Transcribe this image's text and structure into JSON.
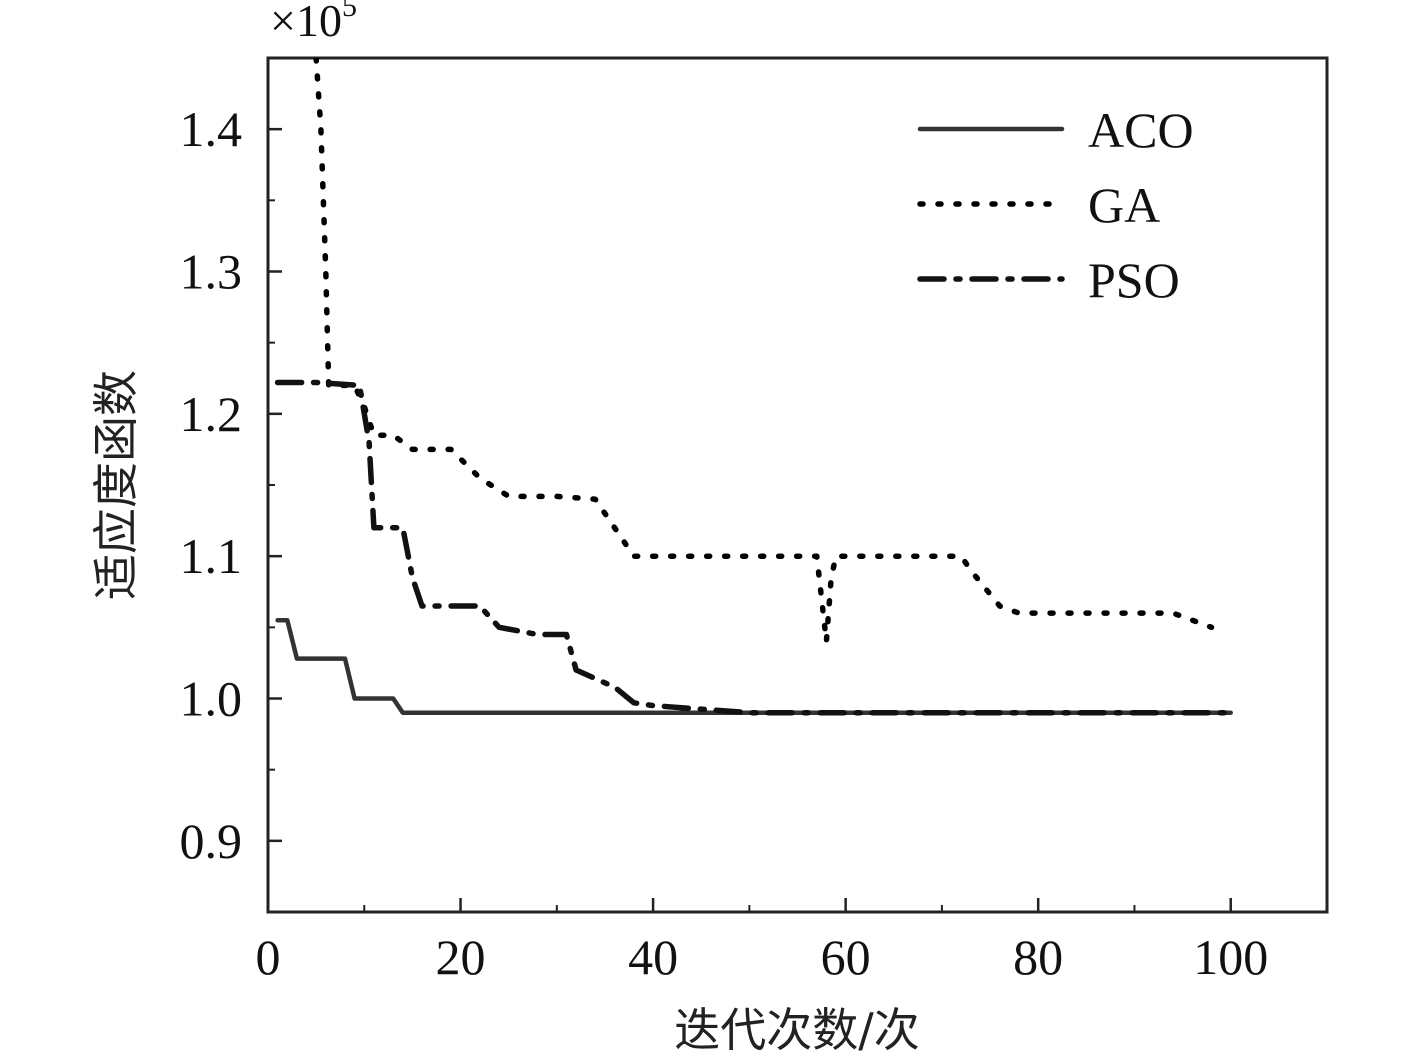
{
  "chart_data": {
    "type": "line",
    "title": "",
    "xlabel": "迭代次数/次",
    "ylabel": "适应度函数",
    "y_multiplier": "×10",
    "y_multiplier_exp": "5",
    "xlim": [
      0,
      110
    ],
    "ylim": [
      0.85,
      1.45
    ],
    "x_ticks": [
      0,
      20,
      40,
      60,
      80,
      100
    ],
    "x_tick_labels": [
      "0",
      "20",
      "40",
      "60",
      "80",
      "100"
    ],
    "x_minor_ticks": [
      10,
      30,
      50,
      70,
      90
    ],
    "y_ticks": [
      0.9,
      1.0,
      1.1,
      1.2,
      1.3,
      1.4
    ],
    "y_tick_labels": [
      "0.9",
      "1.0",
      "1.1",
      "1.2",
      "1.3",
      "1.4"
    ],
    "y_minor_ticks": [
      0.95,
      1.05,
      1.15,
      1.25,
      1.35
    ],
    "grid": false,
    "legend_position": "top-right",
    "series": [
      {
        "name": "ACO",
        "style": "solid",
        "color": "#333333",
        "x": [
          1,
          2,
          3,
          8,
          9,
          13,
          14,
          100
        ],
        "y": [
          1.055,
          1.055,
          1.028,
          1.028,
          1.0,
          1.0,
          0.99,
          0.99
        ]
      },
      {
        "name": "GA",
        "style": "dotted",
        "color": "#000000",
        "x": [
          5,
          5.5,
          6,
          6.3,
          7,
          9,
          10,
          11,
          13,
          15,
          19,
          22,
          25,
          30,
          34,
          36,
          38,
          46,
          50,
          57,
          58,
          58.5,
          59,
          62,
          72,
          73,
          76,
          78,
          92,
          94,
          98
        ],
        "y": [
          1.45,
          1.4,
          1.3,
          1.22,
          1.22,
          1.22,
          1.205,
          1.185,
          1.185,
          1.175,
          1.175,
          1.155,
          1.142,
          1.142,
          1.14,
          1.12,
          1.1,
          1.1,
          1.1,
          1.1,
          1.04,
          1.085,
          1.1,
          1.1,
          1.1,
          1.09,
          1.065,
          1.06,
          1.06,
          1.06,
          1.05
        ]
      },
      {
        "name": "PSO",
        "style": "dashdot",
        "color": "#111111",
        "x": [
          1,
          5,
          9.5,
          10.5,
          11,
          14,
          15,
          16,
          18,
          22,
          24,
          28,
          31,
          32,
          36,
          38,
          40,
          50,
          60,
          70,
          80,
          90,
          100
        ],
        "y": [
          1.222,
          1.222,
          1.22,
          1.18,
          1.12,
          1.12,
          1.085,
          1.065,
          1.065,
          1.065,
          1.05,
          1.045,
          1.045,
          1.02,
          1.008,
          0.997,
          0.995,
          0.99,
          0.99,
          0.99,
          0.99,
          0.99,
          0.99
        ]
      }
    ]
  }
}
